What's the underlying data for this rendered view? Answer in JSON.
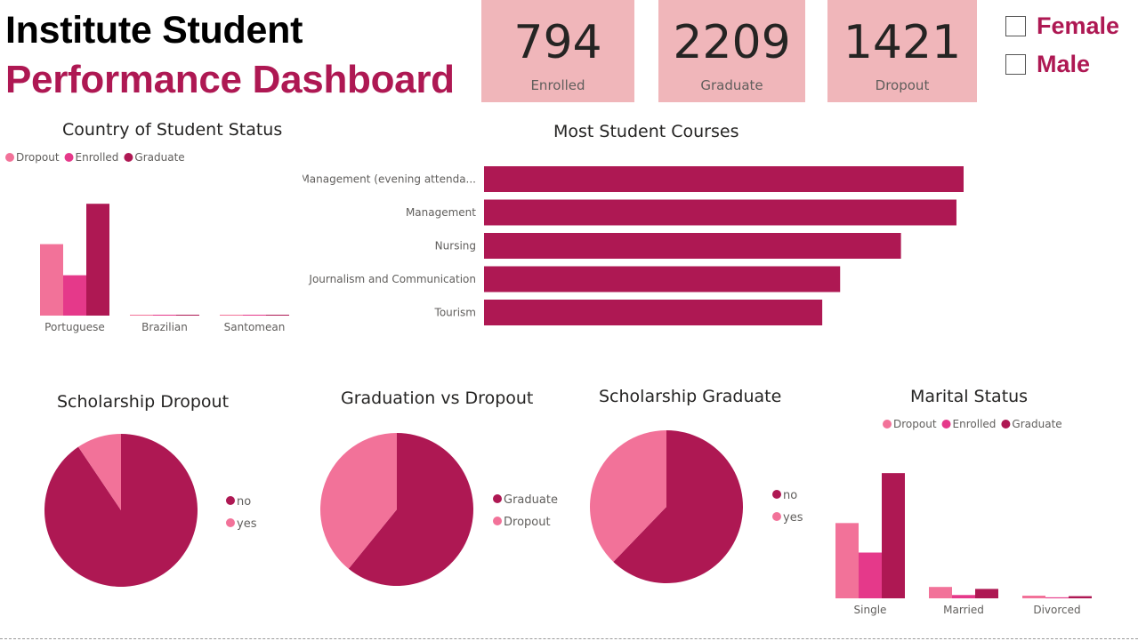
{
  "header": {
    "title_line1": "Institute Student",
    "title_line2": "Performance Dashboard"
  },
  "kpis": [
    {
      "value": "794",
      "label": "Enrolled"
    },
    {
      "value": "2209",
      "label": "Graduate"
    },
    {
      "value": "1421",
      "label": "Dropout"
    }
  ],
  "gender_slicer": {
    "options": [
      "Female",
      "Male"
    ]
  },
  "colors": {
    "dropout": "#f27299",
    "enrolled": "#e5398a",
    "graduate": "#ae1853",
    "accent": "#ae1853",
    "kpi_bg": "#f0b6ba"
  },
  "chart_data": [
    {
      "id": "country",
      "type": "bar",
      "title": "Country of Student Status",
      "legend": "top-left",
      "categories": [
        "Portuguese",
        "Brazilian",
        "Santomean"
      ],
      "series": [
        {
          "name": "Dropout",
          "values": [
            1310,
            10,
            5
          ]
        },
        {
          "name": "Enrolled",
          "values": [
            740,
            6,
            3
          ]
        },
        {
          "name": "Graduate",
          "values": [
            2050,
            12,
            6
          ]
        }
      ],
      "ylim": [
        0,
        2200
      ]
    },
    {
      "id": "courses",
      "type": "bar",
      "orientation": "horizontal",
      "title": "Most Student Courses",
      "categories": [
        "Management (evening attenda...",
        "Management",
        "Nursing",
        "Journalism and Communication",
        "Tourism"
      ],
      "values": [
        268,
        264,
        233,
        199,
        189
      ],
      "xlim": [
        0,
        268
      ]
    },
    {
      "id": "scholarship_dropout",
      "type": "pie",
      "title": "Scholarship Dropout",
      "legend": "right",
      "labels": [
        "no",
        "yes"
      ],
      "values": [
        1287,
        134
      ]
    },
    {
      "id": "grad_vs_dropout",
      "type": "pie",
      "title": "Graduation vs Dropout",
      "legend": "right",
      "labels": [
        "Graduate",
        "Dropout"
      ],
      "values": [
        2209,
        1421
      ]
    },
    {
      "id": "scholarship_graduate",
      "type": "pie",
      "title": "Scholarship Graduate",
      "legend": "right",
      "labels": [
        "no",
        "yes"
      ],
      "values": [
        1374,
        835
      ]
    },
    {
      "id": "marital",
      "type": "bar",
      "title": "Marital Status",
      "legend": "top",
      "categories": [
        "Single",
        "Married",
        "Divorced"
      ],
      "series": [
        {
          "name": "Dropout",
          "values": [
            1184,
            179,
            42
          ]
        },
        {
          "name": "Enrolled",
          "values": [
            720,
            52,
            16
          ]
        },
        {
          "name": "Graduate",
          "values": [
            1970,
            148,
            34
          ]
        }
      ],
      "ylim": [
        0,
        2000
      ]
    }
  ]
}
